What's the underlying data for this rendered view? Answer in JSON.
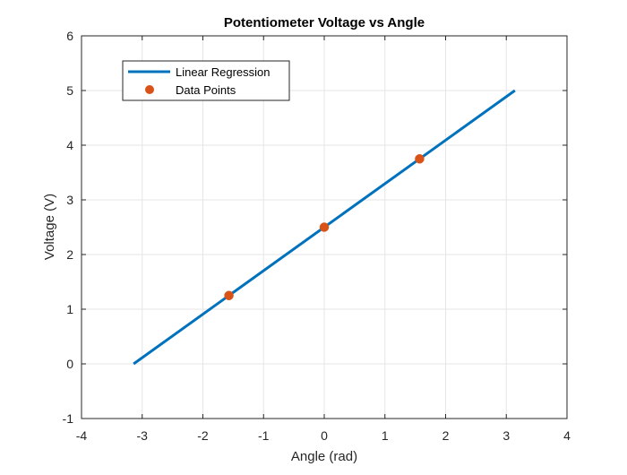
{
  "chart_data": {
    "type": "line",
    "title": "Potentiometer Voltage vs Angle",
    "xlabel": "Angle (rad)",
    "ylabel": "Voltage (V)",
    "xlim": [
      -4,
      4
    ],
    "ylim": [
      -1,
      6
    ],
    "xticks": [
      -4,
      -3,
      -2,
      -1,
      0,
      1,
      2,
      3,
      4
    ],
    "yticks": [
      -1,
      0,
      1,
      2,
      3,
      4,
      5,
      6
    ],
    "grid": true,
    "legend_position": "top-left",
    "series": [
      {
        "name": "Linear Regression",
        "kind": "line",
        "color": "#0072BD",
        "x": [
          -3.1416,
          3.1416
        ],
        "y": [
          0,
          5
        ]
      },
      {
        "name": "Data Points",
        "kind": "scatter",
        "color": "#D95319",
        "x": [
          -1.5708,
          0,
          1.5708
        ],
        "y": [
          1.25,
          2.5,
          3.75
        ]
      }
    ]
  }
}
